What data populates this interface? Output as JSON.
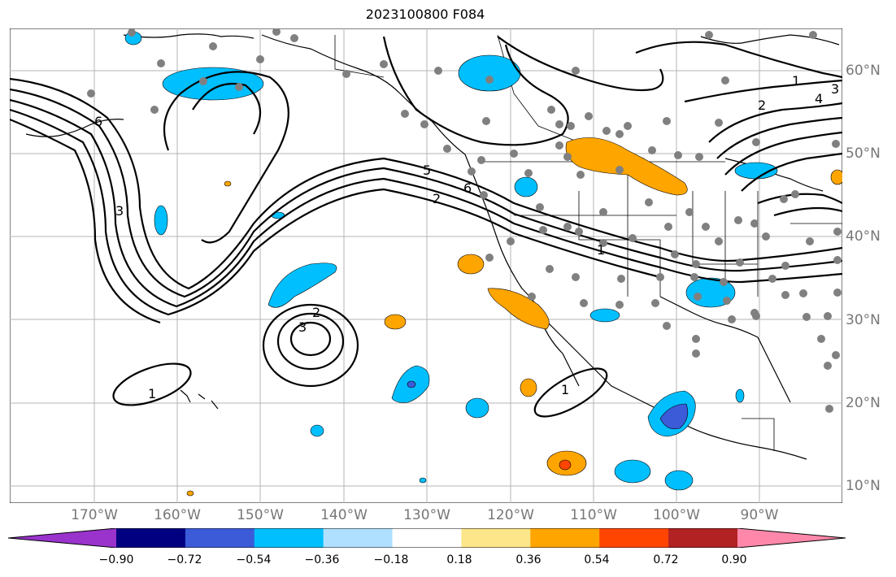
{
  "title": "2023100800 F084",
  "latitude_labels": [
    "60°N",
    "50°N",
    "40°N",
    "30°N",
    "20°N",
    "10°N"
  ],
  "longitude_labels": [
    "170°W",
    "160°W",
    "150°W",
    "140°W",
    "130°W",
    "120°W",
    "110°W",
    "100°W",
    "90°W"
  ],
  "contour_labels": [
    "1",
    "2",
    "3",
    "4",
    "5",
    "6"
  ],
  "colorbar": {
    "ticks": [
      "−0.90",
      "−0.72",
      "−0.54",
      "−0.36",
      "−0.18",
      "0.18",
      "0.36",
      "0.54",
      "0.72",
      "0.90"
    ],
    "colors": [
      "#9933cc",
      "#000080",
      "#3b5bd9",
      "#00bfff",
      "#b0e0ff",
      "#ffffff",
      "#fde68a",
      "#ffa500",
      "#ff4500",
      "#b22222",
      "#ff88aa"
    ]
  },
  "map_colors": {
    "grid": "#b4b4b4",
    "coast": "#000000",
    "contour": "#000000",
    "station_dots": "#808080"
  }
}
